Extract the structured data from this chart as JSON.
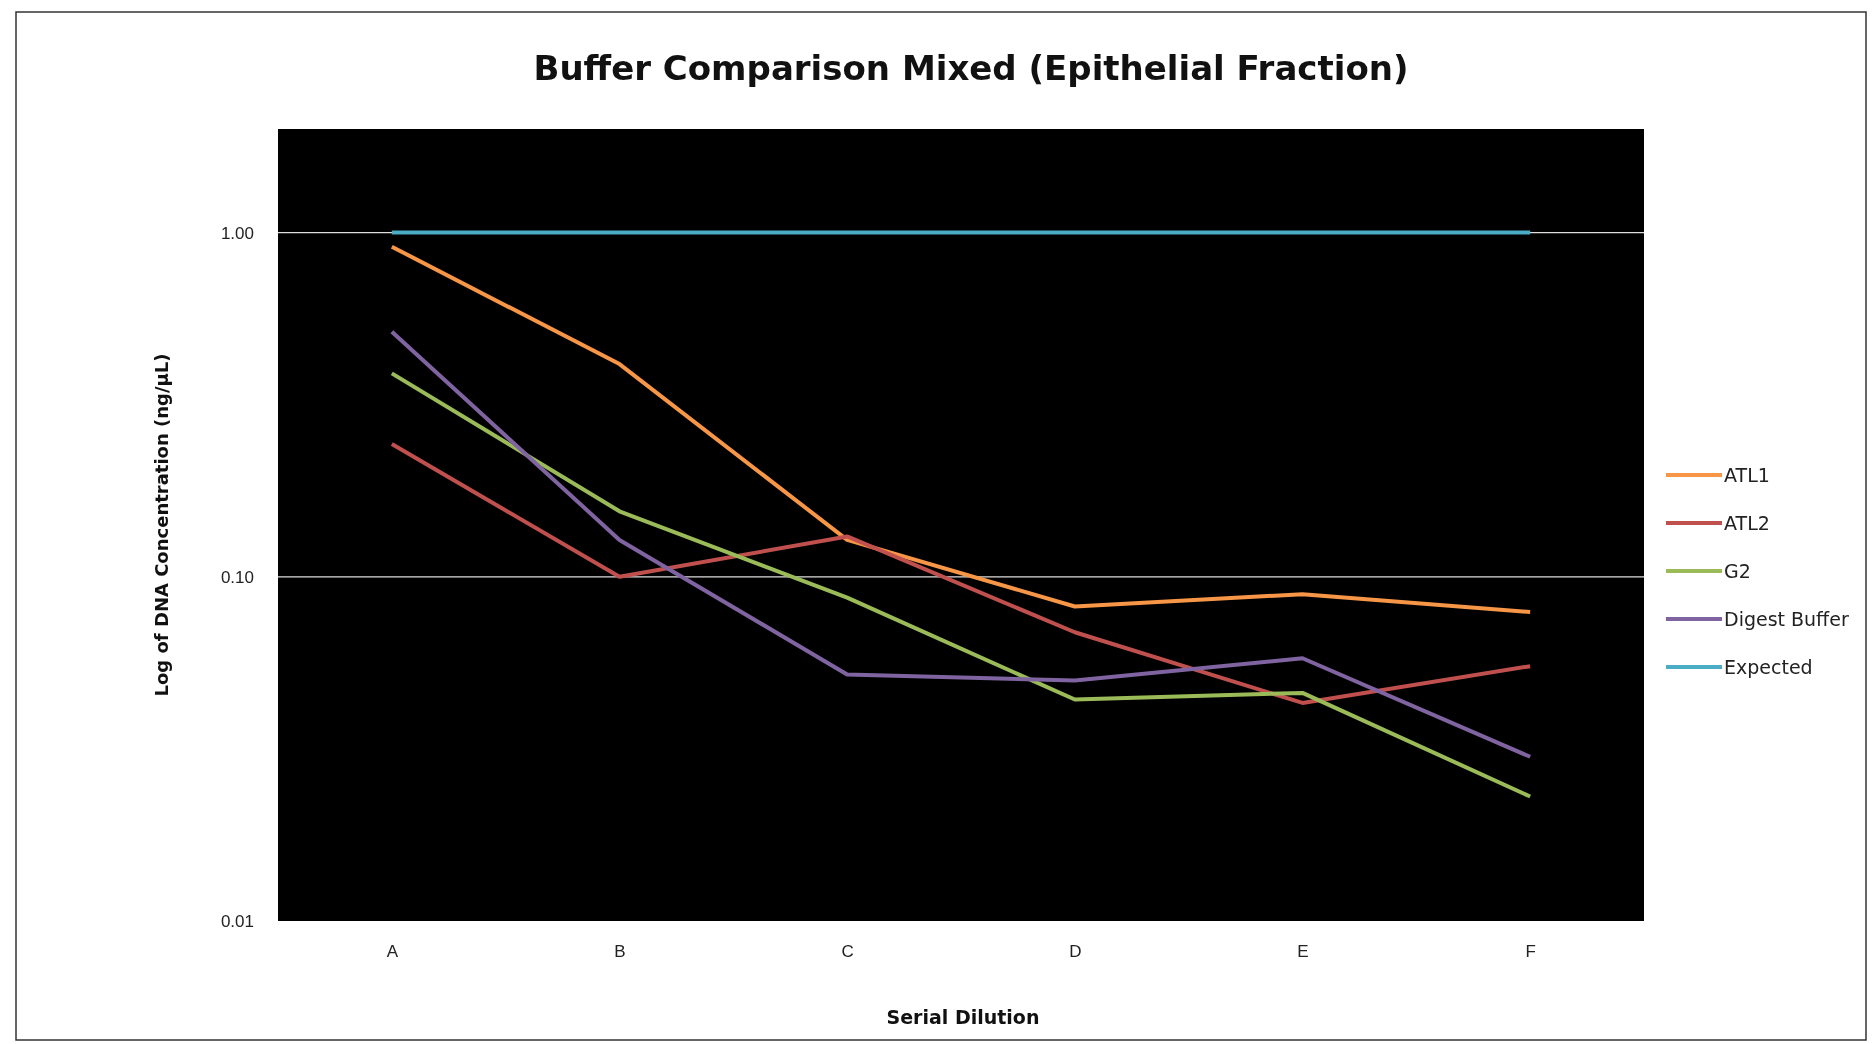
{
  "chart_data": {
    "type": "line",
    "title": "Buffer Comparison Mixed (Epithelial Fraction)",
    "xlabel": "Serial Dilution",
    "ylabel": "Log of DNA Concentration (ng/µL)",
    "categories": [
      "A",
      "B",
      "C",
      "D",
      "E",
      "F"
    ],
    "series": [
      {
        "name": "ATL1",
        "color": "#f79646",
        "values": [
          0.91,
          0.415,
          0.128,
          0.082,
          0.089,
          0.079
        ]
      },
      {
        "name": "ATL2",
        "color": "#c0504d",
        "values": [
          0.243,
          0.1,
          0.131,
          0.069,
          0.043,
          0.055
        ]
      },
      {
        "name": "G2",
        "color": "#9bbb59",
        "values": [
          0.39,
          0.155,
          0.087,
          0.044,
          0.046,
          0.023
        ]
      },
      {
        "name": "Digest Buffer",
        "color": "#8064a2",
        "values": [
          0.515,
          0.128,
          0.052,
          0.05,
          0.058,
          0.03
        ]
      },
      {
        "name": "Expected",
        "color": "#4bacc6",
        "values": [
          1,
          1,
          1,
          1,
          1,
          1
        ]
      }
    ],
    "log": true,
    "ylim": [
      0.01,
      2
    ],
    "yticks": [
      {
        "value": 0.01,
        "label": "0.01"
      },
      {
        "value": 0.1,
        "label": "0.10"
      },
      {
        "value": 1,
        "label": "1.00"
      }
    ],
    "grid": "y",
    "legend": "right",
    "marker": "none",
    "line_style": "solid"
  }
}
